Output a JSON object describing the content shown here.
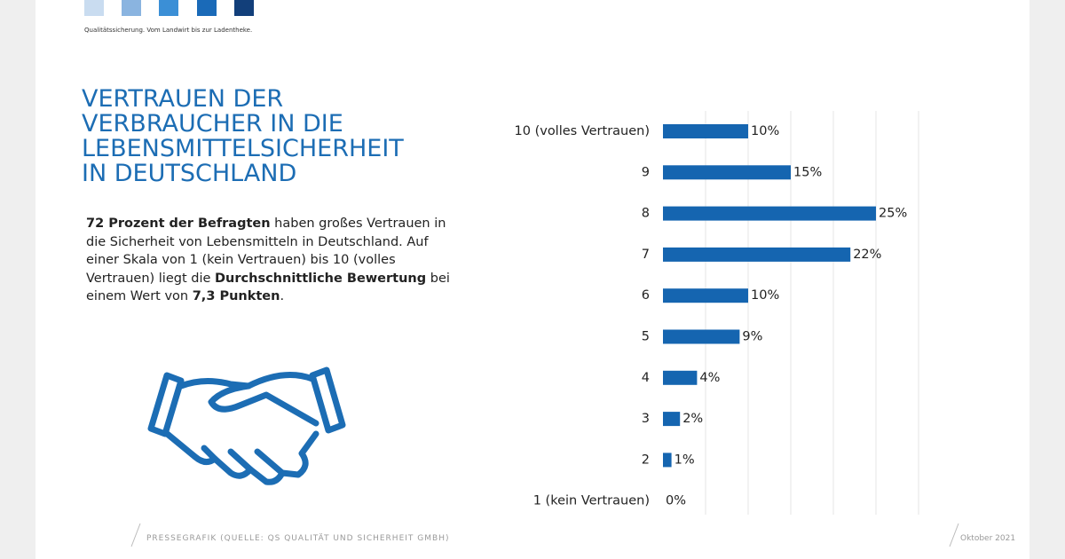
{
  "header": {
    "tagline": "Qualitätssicherung. Vom Landwirt bis zur Ladentheke."
  },
  "headline": [
    "VERTRAUEN DER",
    "VERBRAUCHER IN DIE",
    "LEBENSMITTELSICHERHEIT",
    "IN DEUTSCHLAND"
  ],
  "intro": [
    {
      "text": "72 Prozent der Befragten",
      "bold": true
    },
    {
      "text": " haben großes Vertrauen in die Sicherheit von Lebensmitteln in Deutschland. Auf einer Skala von 1 (kein Vertrauen) bis 10 (volles Vertrauen) liegt die ",
      "bold": false
    },
    {
      "text": "Durchschnittliche Bewertung",
      "bold": true
    },
    {
      "text": " bei einem Wert von ",
      "bold": false
    },
    {
      "text": "7,3 Punkten",
      "bold": true
    },
    {
      "text": ".",
      "bold": false
    }
  ],
  "chart_data": {
    "type": "hbar",
    "color": "#1565b0",
    "categories": [
      "10 (volles Vertrauen)",
      "9",
      "8",
      "7",
      "6",
      "5",
      "4",
      "3",
      "2",
      "1 (kein Vertrauen)"
    ],
    "values": [
      10,
      15,
      25,
      22,
      10,
      9,
      4,
      2,
      1,
      0
    ],
    "value_labels": [
      "10%",
      "15%",
      "25%",
      "22%",
      "10%",
      "9%",
      "4%",
      "2%",
      "1%",
      "0%"
    ]
  },
  "footer": {
    "source": "PRESSEGRAFIK (QUELLE: QS QUALITÄT UND SICHERHEIT GMBH)",
    "date": "Oktober 2021"
  }
}
